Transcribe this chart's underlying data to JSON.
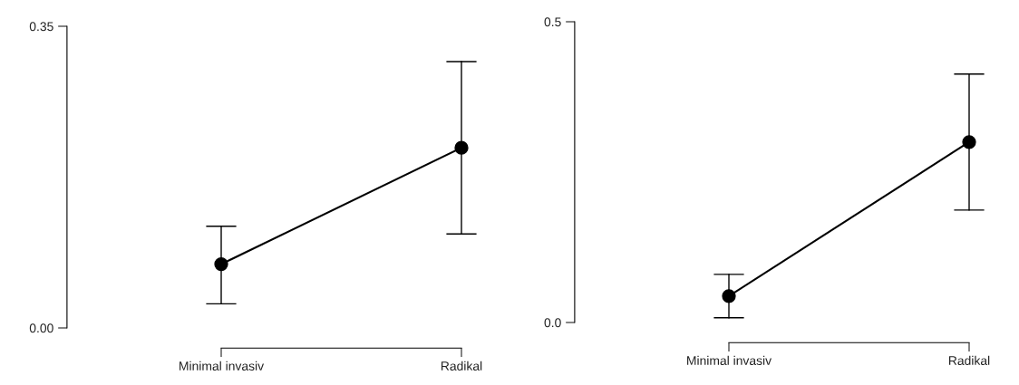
{
  "chart_data": [
    {
      "type": "line",
      "categories": [
        "Minimal invasiv",
        "Radikal"
      ],
      "series": [
        {
          "color": "#000000",
          "values": [
            0.074,
            0.209
          ],
          "errors": [
            [
              0.028,
              0.118
            ],
            [
              0.109,
              0.309
            ]
          ]
        }
      ],
      "ylim": [
        0,
        0.35
      ],
      "yticks": [
        {
          "value": 0,
          "label": "0.00"
        },
        0.35
      ],
      "marker": "circle",
      "line_style": "solid",
      "grid": false
    },
    {
      "type": "line",
      "categories": [
        "Minimal invasiv",
        "Radikal"
      ],
      "series": [
        {
          "color": "#000000",
          "values": [
            0.044,
            0.3
          ],
          "errors": [
            [
              0.008,
              0.08
            ],
            [
              0.187,
              0.413
            ]
          ]
        }
      ],
      "ylim": [
        0,
        0.5
      ],
      "yticks": [
        {
          "value": 0,
          "label": "0.0"
        },
        0.5
      ],
      "marker": "circle",
      "line_style": "solid",
      "grid": false
    }
  ]
}
